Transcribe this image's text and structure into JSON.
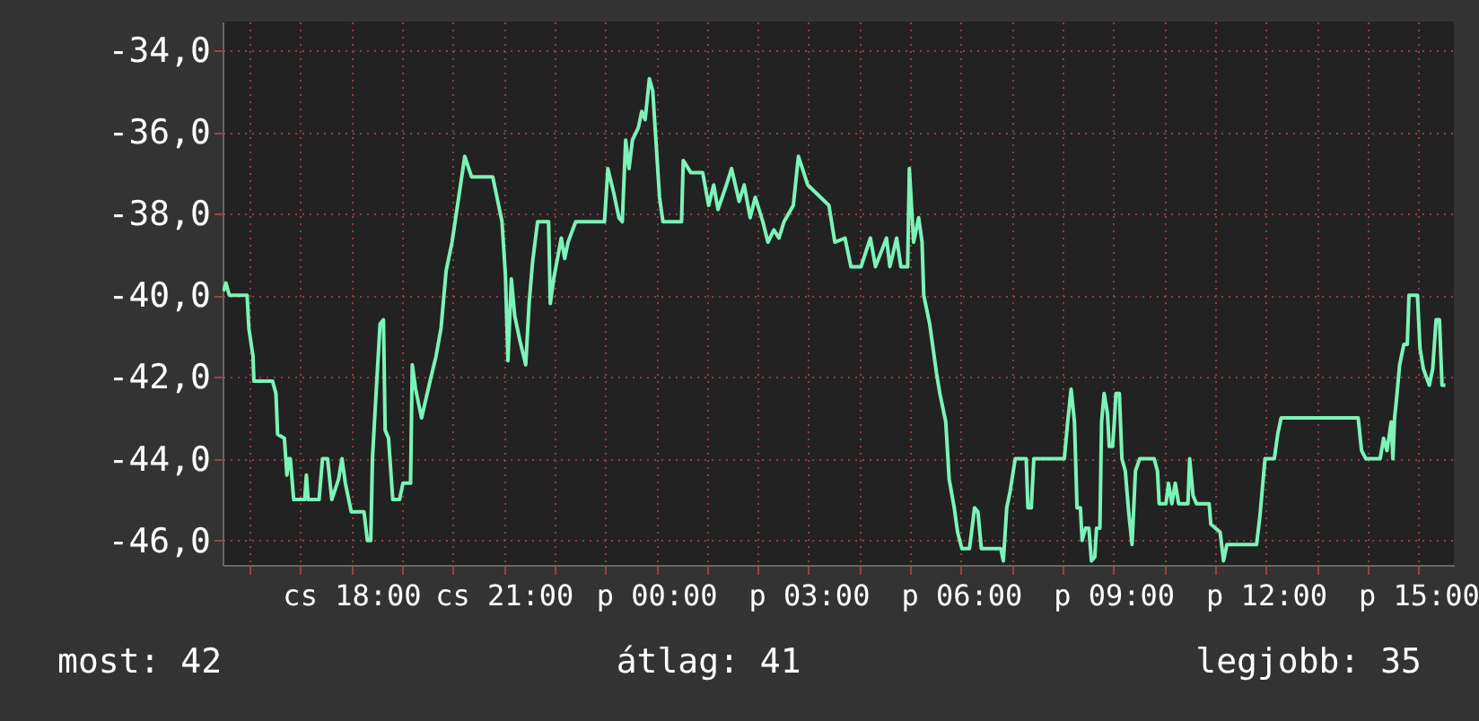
{
  "chart_data": {
    "type": "line",
    "grid": true,
    "annotations": [
      "most: 42",
      "átlag: 41",
      "legjobb: 35"
    ],
    "xlim": [
      "--01-02T15:28",
      "--01-03T15:42"
    ],
    "xticks": [
      {
        "value": "--01-02T16:00",
        "label": null
      },
      {
        "value": "--01-02T17:00",
        "label": null
      },
      {
        "value": "--01-02T18:00",
        "label": "cs 18:00"
      },
      {
        "value": "--01-02T19:00",
        "label": null
      },
      {
        "value": "--01-02T20:00",
        "label": null
      },
      {
        "value": "--01-02T21:00",
        "label": "cs 21:00"
      },
      {
        "value": "--01-02T22:00",
        "label": null
      },
      {
        "value": "--01-02T23:00",
        "label": null
      },
      {
        "value": "--01-03T00:00",
        "label": "p 00:00"
      },
      {
        "value": "--01-03T01:00",
        "label": null
      },
      {
        "value": "--01-03T02:00",
        "label": null
      },
      {
        "value": "--01-03T03:00",
        "label": "p 03:00"
      },
      {
        "value": "--01-03T04:00",
        "label": null
      },
      {
        "value": "--01-03T05:00",
        "label": null
      },
      {
        "value": "--01-03T06:00",
        "label": "p 06:00"
      },
      {
        "value": "--01-03T07:00",
        "label": null
      },
      {
        "value": "--01-03T08:00",
        "label": null
      },
      {
        "value": "--01-03T09:00",
        "label": "p 09:00"
      },
      {
        "value": "--01-03T10:00",
        "label": null
      },
      {
        "value": "--01-03T11:00",
        "label": null
      },
      {
        "value": "--01-03T12:00",
        "label": "p 12:00"
      },
      {
        "value": "--01-03T13:00",
        "label": null
      },
      {
        "value": "--01-03T14:00",
        "label": null
      },
      {
        "value": "--01-03T15:00",
        "label": "p 15:00"
      }
    ],
    "ylim": [
      -46.6,
      -33.3
    ],
    "yticks": [
      {
        "value": -46,
        "label": "-46,0"
      },
      {
        "value": -44,
        "label": "-44,0"
      },
      {
        "value": -42,
        "label": "-42,0"
      },
      {
        "value": -40,
        "label": "-40,0"
      },
      {
        "value": -38,
        "label": "-38,0"
      },
      {
        "value": -36,
        "label": "-36,0"
      },
      {
        "value": -34,
        "label": "-34,0"
      }
    ],
    "series": [
      {
        "color": "#7cf3b8",
        "x": [
          "--01-02T15:29",
          "--01-02T15:32",
          "--01-02T15:36",
          "--01-02T15:57",
          "--01-02T15:59",
          "--01-02T16:04",
          "--01-02T16:05",
          "--01-02T16:27",
          "--01-02T16:31",
          "--01-02T16:33",
          "--01-02T16:41",
          "--01-02T16:44",
          "--01-02T16:46",
          "--01-02T16:48",
          "--01-02T16:52",
          "--01-02T17:05",
          "--01-02T17:07",
          "--01-02T17:09",
          "--01-02T17:22",
          "--01-02T17:26",
          "--01-02T17:32",
          "--01-02T17:37",
          "--01-02T17:45",
          "--01-02T17:49",
          "--01-02T17:53",
          "--01-02T18:00",
          "--01-02T18:15",
          "--01-02T18:19",
          "--01-02T18:23",
          "--01-02T18:25",
          "--01-02T18:29",
          "--01-02T18:34",
          "--01-02T18:38",
          "--01-02T18:40",
          "--01-02T18:44",
          "--01-02T18:49",
          "--01-02T18:57",
          "--01-02T19:01",
          "--01-02T19:10",
          "--01-02T19:12",
          "--01-02T19:16",
          "--01-02T19:23",
          "--01-02T19:33",
          "--01-02T19:40",
          "--01-02T19:46",
          "--01-02T19:52",
          "--01-02T19:59",
          "--01-02T20:14",
          "--01-02T20:22",
          "--01-02T20:47",
          "--01-02T20:52",
          "--01-02T20:58",
          "--01-02T21:02",
          "--01-02T21:05",
          "--01-02T21:09",
          "--01-02T21:13",
          "--01-02T21:19",
          "--01-02T21:26",
          "--01-02T21:30",
          "--01-02T21:34",
          "--01-02T21:40",
          "--01-02T21:53",
          "--01-02T21:55",
          "--01-02T21:59",
          "--01-02T22:08",
          "--01-02T22:12",
          "--01-02T22:16",
          "--01-02T22:25",
          "--01-02T22:59",
          "--01-02T23:03",
          "--01-02T23:10",
          "--01-02T23:16",
          "--01-02T23:20",
          "--01-02T23:24",
          "--01-02T23:28",
          "--01-02T23:32",
          "--01-02T23:39",
          "--01-02T23:43",
          "--01-02T23:47",
          "--01-02T23:52",
          "--01-02T23:56",
          "--01-03T00:00",
          "--01-03T00:04",
          "--01-03T00:08",
          "--01-03T00:30",
          "--01-03T00:32",
          "--01-03T00:41",
          "--01-03T00:55",
          "--01-03T01:02",
          "--01-03T01:08",
          "--01-03T01:13",
          "--01-03T01:23",
          "--01-03T01:29",
          "--01-03T01:38",
          "--01-03T01:44",
          "--01-03T01:51",
          "--01-03T01:57",
          "--01-03T02:06",
          "--01-03T02:12",
          "--01-03T02:19",
          "--01-03T02:25",
          "--01-03T02:31",
          "--01-03T02:42",
          "--01-03T02:48",
          "--01-03T02:59",
          "--01-03T03:24",
          "--01-03T03:31",
          "--01-03T03:43",
          "--01-03T03:50",
          "--01-03T04:02",
          "--01-03T04:13",
          "--01-03T04:19",
          "--01-03T04:32",
          "--01-03T04:36",
          "--01-03T04:44",
          "--01-03T04:49",
          "--01-03T04:57",
          "--01-03T04:59",
          "--01-03T05:04",
          "--01-03T05:10",
          "--01-03T05:14",
          "--01-03T05:16",
          "--01-03T05:23",
          "--01-03T05:31",
          "--01-03T05:35",
          "--01-03T05:42",
          "--01-03T05:46",
          "--01-03T05:52",
          "--01-03T05:56",
          "--01-03T06:01",
          "--01-03T06:10",
          "--01-03T06:16",
          "--01-03T06:20",
          "--01-03T06:24",
          "--01-03T06:47",
          "--01-03T06:50",
          "--01-03T06:54",
          "--01-03T06:58",
          "--01-03T07:04",
          "--01-03T07:17",
          "--01-03T07:19",
          "--01-03T07:23",
          "--01-03T07:26",
          "--01-03T08:02",
          "--01-03T08:06",
          "--01-03T08:10",
          "--01-03T08:14",
          "--01-03T08:17",
          "--01-03T08:21",
          "--01-03T08:23",
          "--01-03T08:27",
          "--01-03T08:31",
          "--01-03T08:34",
          "--01-03T08:38",
          "--01-03T08:40",
          "--01-03T08:44",
          "--01-03T08:46",
          "--01-03T08:49",
          "--01-03T08:53",
          "--01-03T08:55",
          "--01-03T08:59",
          "--01-03T09:01",
          "--01-03T09:03",
          "--01-03T09:07",
          "--01-03T09:10",
          "--01-03T09:14",
          "--01-03T09:18",
          "--01-03T09:22",
          "--01-03T09:26",
          "--01-03T09:31",
          "--01-03T09:48",
          "--01-03T09:52",
          "--01-03T09:54",
          "--01-03T10:02",
          "--01-03T10:05",
          "--01-03T10:09",
          "--01-03T10:13",
          "--01-03T10:17",
          "--01-03T10:28",
          "--01-03T10:30",
          "--01-03T10:34",
          "--01-03T10:38",
          "--01-03T10:53",
          "--01-03T10:55",
          "--01-03T11:06",
          "--01-03T11:10",
          "--01-03T11:14",
          "--01-03T11:49",
          "--01-03T11:53",
          "--01-03T11:59",
          "--01-03T12:10",
          "--01-03T12:14",
          "--01-03T12:18",
          "--01-03T13:49",
          "--01-03T13:53",
          "--01-03T13:58",
          "--01-03T14:15",
          "--01-03T14:19",
          "--01-03T14:23",
          "--01-03T14:28",
          "--01-03T14:30",
          "--01-03T14:32",
          "--01-03T14:34",
          "--01-03T14:38",
          "--01-03T14:43",
          "--01-03T14:47",
          "--01-03T14:49",
          "--01-03T14:59",
          "--01-03T15:02",
          "--01-03T15:06",
          "--01-03T15:13",
          "--01-03T15:17",
          "--01-03T15:21",
          "--01-03T15:25",
          "--01-03T15:28",
          "--01-03T15:32"
        ],
        "values": [
          -39.9,
          -39.7,
          -40,
          -40,
          -40.8,
          -41.5,
          -42.1,
          -42.1,
          -42.4,
          -43.4,
          -43.5,
          -44.4,
          -44,
          -44,
          -45,
          -45,
          -44.4,
          -45,
          -45,
          -44,
          -44,
          -45,
          -44.5,
          -44,
          -44.6,
          -45.3,
          -45.3,
          -46,
          -46,
          -44,
          -42.5,
          -40.7,
          -40.6,
          -43.3,
          -43.5,
          -45,
          -45,
          -44.6,
          -44.6,
          -41.7,
          -42.3,
          -43,
          -42.1,
          -41.5,
          -40.8,
          -39.4,
          -38.7,
          -36.6,
          -37.1,
          -37.1,
          -37.6,
          -38.2,
          -39.5,
          -41.6,
          -39.6,
          -40.5,
          -41.1,
          -41.7,
          -40.2,
          -39.2,
          -38.2,
          -38.2,
          -40.2,
          -39.6,
          -38.6,
          -39.1,
          -38.7,
          -38.2,
          -38.2,
          -36.9,
          -37.5,
          -38.1,
          -38.2,
          -36.2,
          -36.9,
          -36.2,
          -35.9,
          -35.5,
          -35.7,
          -34.7,
          -35,
          -36.3,
          -37.6,
          -38.2,
          -38.2,
          -36.7,
          -37,
          -37,
          -37.8,
          -37.3,
          -37.9,
          -37.3,
          -36.9,
          -37.7,
          -37.3,
          -38.1,
          -37.6,
          -38.2,
          -38.7,
          -38.4,
          -38.6,
          -38.2,
          -37.8,
          -36.6,
          -37.3,
          -37.8,
          -38.7,
          -38.6,
          -39.3,
          -39.3,
          -38.6,
          -39.3,
          -38.6,
          -39.3,
          -38.6,
          -39.3,
          -39.3,
          -36.9,
          -38.7,
          -38.1,
          -38.7,
          -40,
          -40.7,
          -41.9,
          -42.4,
          -43.1,
          -44.5,
          -45.2,
          -45.8,
          -46.2,
          -46.2,
          -45.2,
          -45.3,
          -46.2,
          -46.2,
          -46.5,
          -45.2,
          -44.8,
          -44,
          -44,
          -45.2,
          -45.2,
          -44,
          -44,
          -43.1,
          -42.3,
          -43.1,
          -45.2,
          -45.2,
          -46,
          -45.7,
          -45.7,
          -46.5,
          -46.4,
          -45.7,
          -45.7,
          -43.1,
          -42.4,
          -42.9,
          -43.7,
          -43.7,
          -43.1,
          -42.4,
          -42.4,
          -44,
          -44.3,
          -45.3,
          -46.1,
          -44.3,
          -44,
          -44,
          -44.3,
          -45.1,
          -45.1,
          -44.6,
          -45.1,
          -44.6,
          -45.1,
          -45.1,
          -44,
          -44.9,
          -45.1,
          -45.1,
          -45.6,
          -45.8,
          -46.5,
          -46.1,
          -46.1,
          -45.4,
          -44,
          -44,
          -43.4,
          -43,
          -43,
          -43.8,
          -44,
          -44,
          -43.5,
          -43.8,
          -43.1,
          -44,
          -43,
          -42.6,
          -41.7,
          -41.2,
          -41.2,
          -40,
          -40,
          -41.3,
          -41.8,
          -42.2,
          -41.8,
          -40.6,
          -40.6,
          -42.2,
          -42.2
        ]
      }
    ]
  }
}
